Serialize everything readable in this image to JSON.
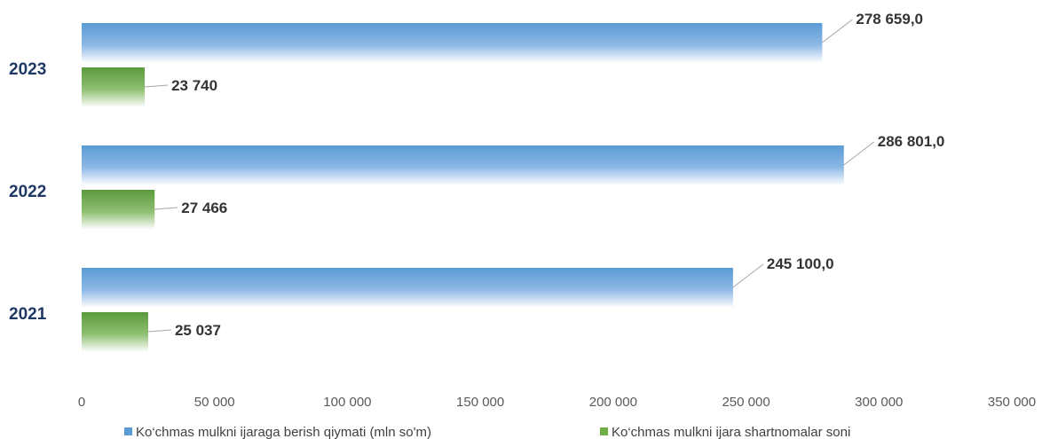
{
  "chart_data": {
    "type": "bar",
    "orientation": "horizontal",
    "categories": [
      "2023",
      "2022",
      "2021"
    ],
    "series": [
      {
        "name": "Ko‘chmas mulkni ijaraga berish qiymati (mln so'm)",
        "values": [
          278659.0,
          286801.0,
          245100.0
        ],
        "labels": [
          "278 659,0",
          "286 801,0",
          "245 100,0"
        ],
        "color": "#5b9bd5"
      },
      {
        "name": "Ko‘chmas mulkni ijara shartnomalar soni",
        "values": [
          23740,
          27466,
          25037
        ],
        "labels": [
          "23 740",
          "27 466",
          "25 037"
        ],
        "color": "#70ad47"
      }
    ],
    "xlim": [
      0,
      350000
    ],
    "xticks": [
      "0",
      "50 000",
      "100 000",
      "150 000",
      "200 000",
      "250 000",
      "300 000",
      "350 000"
    ],
    "grid": false,
    "legend": "bottom"
  }
}
